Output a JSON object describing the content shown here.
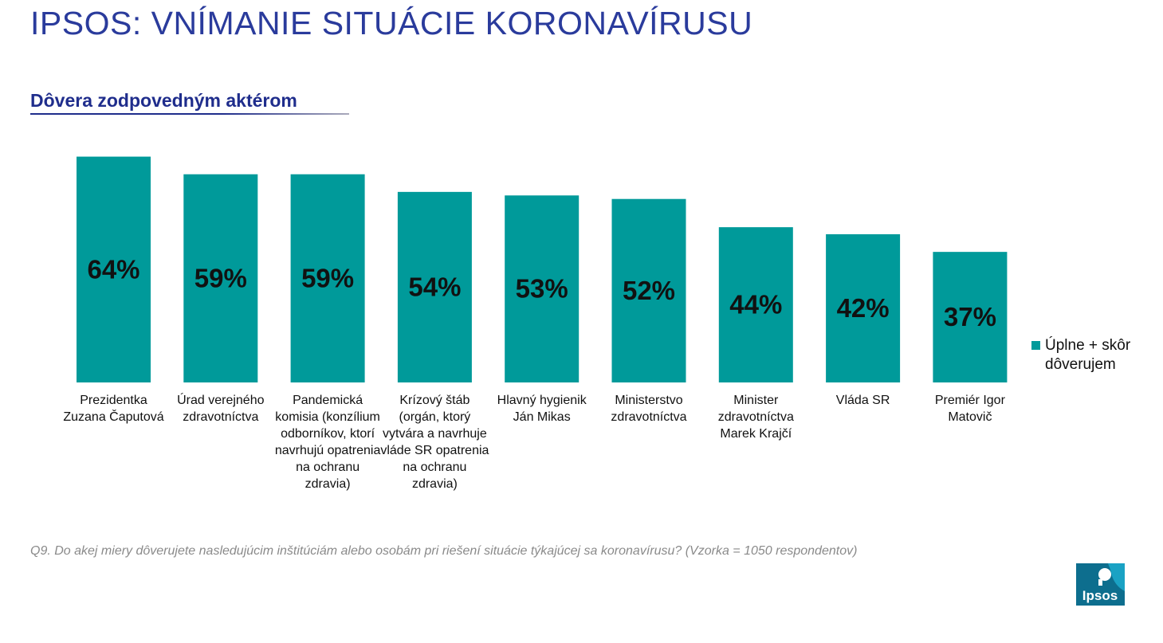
{
  "header": {
    "title": "IPSOS: VNÍMANIE SITUÁCIE KORONAVÍRUSU",
    "subtitle": "Dôvera zodpovedným aktérom"
  },
  "chart_data": {
    "type": "bar",
    "title": "",
    "xlabel": "",
    "ylabel": "",
    "ylim": [
      0,
      70
    ],
    "grid": false,
    "legend_position": "right",
    "bar_color": "#009a9a",
    "categories": [
      "Prezidentka Zuzana Čaputová",
      "Úrad verejného zdravotníctva",
      "Pandemická komisia (konzílium odborníkov, ktorí navrhujú opatrenia na ochranu zdravia)",
      "Krízový štáb (orgán, ktorý vytvára a navrhuje vláde SR opatrenia na ochranu zdravia)",
      "Hlavný hygienik Ján Mikas",
      "Ministerstvo zdravotníctva",
      "Minister zdravotníctva Marek Krajčí",
      "Vláda SR",
      "Premiér Igor Matovič"
    ],
    "series": [
      {
        "name": "Úplne + skôr dôverujem",
        "values": [
          64,
          59,
          59,
          54,
          53,
          52,
          44,
          42,
          37
        ],
        "data_labels": [
          "64%",
          "59%",
          "59%",
          "54%",
          "53%",
          "52%",
          "44%",
          "42%",
          "37%"
        ]
      }
    ]
  },
  "footnote": "Q9. Do akej miery dôverujete nasledujúcim inštitúciám alebo osobám pri riešení situácie týkajúcej sa koronavírusu? (Vzorka = 1050 respondentov)",
  "logo": {
    "text": "Ipsos",
    "color": "#0d6e8e"
  }
}
